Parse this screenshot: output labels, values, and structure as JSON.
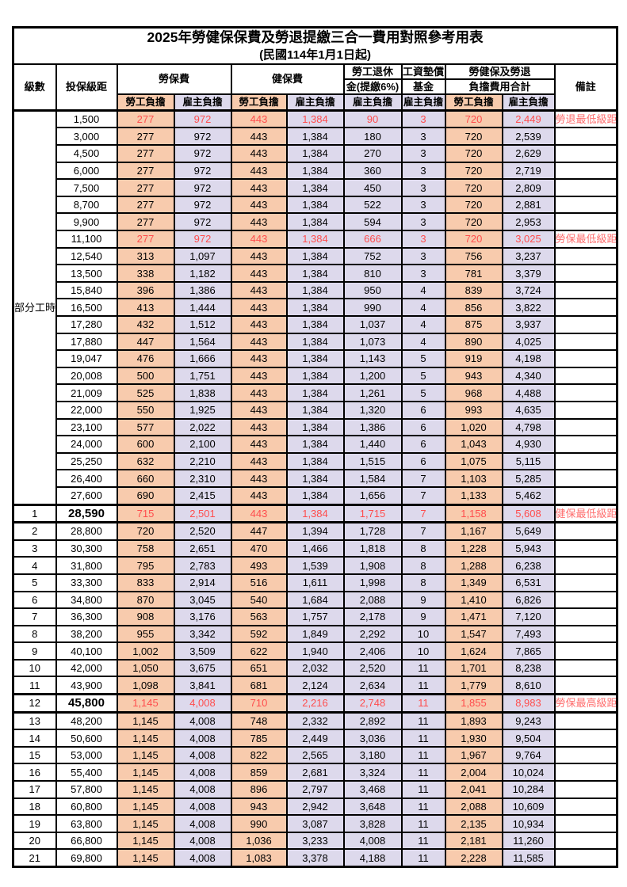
{
  "page": {
    "title": "2025年勞健保保費及勞退提繳三合一費用對照參考用表",
    "subtitle": "(民國114年1月1日起)"
  },
  "header": {
    "level": "級數",
    "bracket": "投保級距",
    "labor_fee": "勞保費",
    "health_fee": "健保費",
    "pension_line1": "勞工退休",
    "pension_line2": "金(提繳6%)",
    "wage_fund_line1": "工資墊償",
    "wage_fund_line2": "基金",
    "total_line1": "勞健保及勞退",
    "total_line2": "負擔費用合計",
    "note": "備註",
    "self_pay": "勞工負擔",
    "employer_pay": "雇主負擔"
  },
  "part_time": {
    "label": "部分工時",
    "span": 23
  },
  "colors": {
    "self_bg": "#F8CBAD",
    "employer_bg": "#DDD9EC",
    "highlight_value": "#FF4D4D",
    "note_red": "#FF6E6E",
    "border": "#000000"
  },
  "rows": [
    {
      "level": "",
      "bracket": "1,500",
      "values": [
        "277",
        "972",
        "443",
        "1,384",
        "90",
        "3",
        "720",
        "2,449"
      ],
      "note": "勞退最低級距",
      "red": true,
      "bold": false,
      "thick": false
    },
    {
      "level": "",
      "bracket": "3,000",
      "values": [
        "277",
        "972",
        "443",
        "1,384",
        "180",
        "3",
        "720",
        "2,539"
      ],
      "note": "",
      "red": false,
      "bold": false,
      "thick": false
    },
    {
      "level": "",
      "bracket": "4,500",
      "values": [
        "277",
        "972",
        "443",
        "1,384",
        "270",
        "3",
        "720",
        "2,629"
      ],
      "note": "",
      "red": false,
      "bold": false,
      "thick": false
    },
    {
      "level": "",
      "bracket": "6,000",
      "values": [
        "277",
        "972",
        "443",
        "1,384",
        "360",
        "3",
        "720",
        "2,719"
      ],
      "note": "",
      "red": false,
      "bold": false,
      "thick": false
    },
    {
      "level": "",
      "bracket": "7,500",
      "values": [
        "277",
        "972",
        "443",
        "1,384",
        "450",
        "3",
        "720",
        "2,809"
      ],
      "note": "",
      "red": false,
      "bold": false,
      "thick": false
    },
    {
      "level": "",
      "bracket": "8,700",
      "values": [
        "277",
        "972",
        "443",
        "1,384",
        "522",
        "3",
        "720",
        "2,881"
      ],
      "note": "",
      "red": false,
      "bold": false,
      "thick": false
    },
    {
      "level": "",
      "bracket": "9,900",
      "values": [
        "277",
        "972",
        "443",
        "1,384",
        "594",
        "3",
        "720",
        "2,953"
      ],
      "note": "",
      "red": false,
      "bold": false,
      "thick": false
    },
    {
      "level": "",
      "bracket": "11,100",
      "values": [
        "277",
        "972",
        "443",
        "1,384",
        "666",
        "3",
        "720",
        "3,025"
      ],
      "note": "勞保最低級距",
      "red": true,
      "bold": false,
      "thick": false
    },
    {
      "level": "",
      "bracket": "12,540",
      "values": [
        "313",
        "1,097",
        "443",
        "1,384",
        "752",
        "3",
        "756",
        "3,237"
      ],
      "note": "",
      "red": false,
      "bold": false,
      "thick": false
    },
    {
      "level": "",
      "bracket": "13,500",
      "values": [
        "338",
        "1,182",
        "443",
        "1,384",
        "810",
        "3",
        "781",
        "3,379"
      ],
      "note": "",
      "red": false,
      "bold": false,
      "thick": false
    },
    {
      "level": "",
      "bracket": "15,840",
      "values": [
        "396",
        "1,386",
        "443",
        "1,384",
        "950",
        "4",
        "839",
        "3,724"
      ],
      "note": "",
      "red": false,
      "bold": false,
      "thick": false
    },
    {
      "level": "",
      "bracket": "16,500",
      "values": [
        "413",
        "1,444",
        "443",
        "1,384",
        "990",
        "4",
        "856",
        "3,822"
      ],
      "note": "",
      "red": false,
      "bold": false,
      "thick": false
    },
    {
      "level": "",
      "bracket": "17,280",
      "values": [
        "432",
        "1,512",
        "443",
        "1,384",
        "1,037",
        "4",
        "875",
        "3,937"
      ],
      "note": "",
      "red": false,
      "bold": false,
      "thick": false
    },
    {
      "level": "",
      "bracket": "17,880",
      "values": [
        "447",
        "1,564",
        "443",
        "1,384",
        "1,073",
        "4",
        "890",
        "4,025"
      ],
      "note": "",
      "red": false,
      "bold": false,
      "thick": false
    },
    {
      "level": "",
      "bracket": "19,047",
      "values": [
        "476",
        "1,666",
        "443",
        "1,384",
        "1,143",
        "5",
        "919",
        "4,198"
      ],
      "note": "",
      "red": false,
      "bold": false,
      "thick": false
    },
    {
      "level": "",
      "bracket": "20,008",
      "values": [
        "500",
        "1,751",
        "443",
        "1,384",
        "1,200",
        "5",
        "943",
        "4,340"
      ],
      "note": "",
      "red": false,
      "bold": false,
      "thick": false
    },
    {
      "level": "",
      "bracket": "21,009",
      "values": [
        "525",
        "1,838",
        "443",
        "1,384",
        "1,261",
        "5",
        "968",
        "4,488"
      ],
      "note": "",
      "red": false,
      "bold": false,
      "thick": false
    },
    {
      "level": "",
      "bracket": "22,000",
      "values": [
        "550",
        "1,925",
        "443",
        "1,384",
        "1,320",
        "6",
        "993",
        "4,635"
      ],
      "note": "",
      "red": false,
      "bold": false,
      "thick": false
    },
    {
      "level": "",
      "bracket": "23,100",
      "values": [
        "577",
        "2,022",
        "443",
        "1,384",
        "1,386",
        "6",
        "1,020",
        "4,798"
      ],
      "note": "",
      "red": false,
      "bold": false,
      "thick": false
    },
    {
      "level": "",
      "bracket": "24,000",
      "values": [
        "600",
        "2,100",
        "443",
        "1,384",
        "1,440",
        "6",
        "1,043",
        "4,930"
      ],
      "note": "",
      "red": false,
      "bold": false,
      "thick": false
    },
    {
      "level": "",
      "bracket": "25,250",
      "values": [
        "632",
        "2,210",
        "443",
        "1,384",
        "1,515",
        "6",
        "1,075",
        "5,115"
      ],
      "note": "",
      "red": false,
      "bold": false,
      "thick": false
    },
    {
      "level": "",
      "bracket": "26,400",
      "values": [
        "660",
        "2,310",
        "443",
        "1,384",
        "1,584",
        "7",
        "1,103",
        "5,285"
      ],
      "note": "",
      "red": false,
      "bold": false,
      "thick": false
    },
    {
      "level": "",
      "bracket": "27,600",
      "values": [
        "690",
        "2,415",
        "443",
        "1,384",
        "1,656",
        "7",
        "1,133",
        "5,462"
      ],
      "note": "",
      "red": false,
      "bold": false,
      "thick": false
    },
    {
      "level": "1",
      "bracket": "28,590",
      "values": [
        "715",
        "2,501",
        "443",
        "1,384",
        "1,715",
        "7",
        "1,158",
        "5,608"
      ],
      "note": "健保最低級距",
      "red": true,
      "bold": true,
      "thick": true
    },
    {
      "level": "2",
      "bracket": "28,800",
      "values": [
        "720",
        "2,520",
        "447",
        "1,394",
        "1,728",
        "7",
        "1,167",
        "5,649"
      ],
      "note": "",
      "red": false,
      "bold": false,
      "thick": false
    },
    {
      "level": "3",
      "bracket": "30,300",
      "values": [
        "758",
        "2,651",
        "470",
        "1,466",
        "1,818",
        "8",
        "1,228",
        "5,943"
      ],
      "note": "",
      "red": false,
      "bold": false,
      "thick": false
    },
    {
      "level": "4",
      "bracket": "31,800",
      "values": [
        "795",
        "2,783",
        "493",
        "1,539",
        "1,908",
        "8",
        "1,288",
        "6,238"
      ],
      "note": "",
      "red": false,
      "bold": false,
      "thick": false
    },
    {
      "level": "5",
      "bracket": "33,300",
      "values": [
        "833",
        "2,914",
        "516",
        "1,611",
        "1,998",
        "8",
        "1,349",
        "6,531"
      ],
      "note": "",
      "red": false,
      "bold": false,
      "thick": false
    },
    {
      "level": "6",
      "bracket": "34,800",
      "values": [
        "870",
        "3,045",
        "540",
        "1,684",
        "2,088",
        "9",
        "1,410",
        "6,826"
      ],
      "note": "",
      "red": false,
      "bold": false,
      "thick": false
    },
    {
      "level": "7",
      "bracket": "36,300",
      "values": [
        "908",
        "3,176",
        "563",
        "1,757",
        "2,178",
        "9",
        "1,471",
        "7,120"
      ],
      "note": "",
      "red": false,
      "bold": false,
      "thick": false
    },
    {
      "level": "8",
      "bracket": "38,200",
      "values": [
        "955",
        "3,342",
        "592",
        "1,849",
        "2,292",
        "10",
        "1,547",
        "7,493"
      ],
      "note": "",
      "red": false,
      "bold": false,
      "thick": false
    },
    {
      "level": "9",
      "bracket": "40,100",
      "values": [
        "1,002",
        "3,509",
        "622",
        "1,940",
        "2,406",
        "10",
        "1,624",
        "7,865"
      ],
      "note": "",
      "red": false,
      "bold": false,
      "thick": false
    },
    {
      "level": "10",
      "bracket": "42,000",
      "values": [
        "1,050",
        "3,675",
        "651",
        "2,032",
        "2,520",
        "11",
        "1,701",
        "8,238"
      ],
      "note": "",
      "red": false,
      "bold": false,
      "thick": false
    },
    {
      "level": "11",
      "bracket": "43,900",
      "values": [
        "1,098",
        "3,841",
        "681",
        "2,124",
        "2,634",
        "11",
        "1,779",
        "8,610"
      ],
      "note": "",
      "red": false,
      "bold": false,
      "thick": false
    },
    {
      "level": "12",
      "bracket": "45,800",
      "values": [
        "1,145",
        "4,008",
        "710",
        "2,216",
        "2,748",
        "11",
        "1,855",
        "8,983"
      ],
      "note": "勞保最高級距",
      "red": true,
      "bold": true,
      "thick": true
    },
    {
      "level": "13",
      "bracket": "48,200",
      "values": [
        "1,145",
        "4,008",
        "748",
        "2,332",
        "2,892",
        "11",
        "1,893",
        "9,243"
      ],
      "note": "",
      "red": false,
      "bold": false,
      "thick": false
    },
    {
      "level": "14",
      "bracket": "50,600",
      "values": [
        "1,145",
        "4,008",
        "785",
        "2,449",
        "3,036",
        "11",
        "1,930",
        "9,504"
      ],
      "note": "",
      "red": false,
      "bold": false,
      "thick": false
    },
    {
      "level": "15",
      "bracket": "53,000",
      "values": [
        "1,145",
        "4,008",
        "822",
        "2,565",
        "3,180",
        "11",
        "1,967",
        "9,764"
      ],
      "note": "",
      "red": false,
      "bold": false,
      "thick": false
    },
    {
      "level": "16",
      "bracket": "55,400",
      "values": [
        "1,145",
        "4,008",
        "859",
        "2,681",
        "3,324",
        "11",
        "2,004",
        "10,024"
      ],
      "note": "",
      "red": false,
      "bold": false,
      "thick": false
    },
    {
      "level": "17",
      "bracket": "57,800",
      "values": [
        "1,145",
        "4,008",
        "896",
        "2,797",
        "3,468",
        "11",
        "2,041",
        "10,284"
      ],
      "note": "",
      "red": false,
      "bold": false,
      "thick": false
    },
    {
      "level": "18",
      "bracket": "60,800",
      "values": [
        "1,145",
        "4,008",
        "943",
        "2,942",
        "3,648",
        "11",
        "2,088",
        "10,609"
      ],
      "note": "",
      "red": false,
      "bold": false,
      "thick": false
    },
    {
      "level": "19",
      "bracket": "63,800",
      "values": [
        "1,145",
        "4,008",
        "990",
        "3,087",
        "3,828",
        "11",
        "2,135",
        "10,934"
      ],
      "note": "",
      "red": false,
      "bold": false,
      "thick": false
    },
    {
      "level": "20",
      "bracket": "66,800",
      "values": [
        "1,145",
        "4,008",
        "1,036",
        "3,233",
        "4,008",
        "11",
        "2,181",
        "11,260"
      ],
      "note": "",
      "red": false,
      "bold": false,
      "thick": false
    },
    {
      "level": "21",
      "bracket": "69,800",
      "values": [
        "1,145",
        "4,008",
        "1,083",
        "3,378",
        "4,188",
        "11",
        "2,228",
        "11,585"
      ],
      "note": "",
      "red": false,
      "bold": false,
      "thick": false
    }
  ]
}
